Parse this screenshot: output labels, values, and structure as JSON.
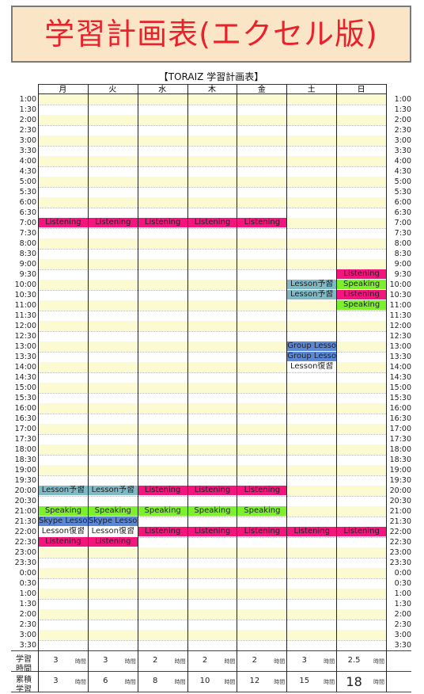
{
  "banner_title": "学習計画表(エクセル版)",
  "sheet_title": "【TORAIZ 学習計画表】",
  "days": [
    "月",
    "火",
    "水",
    "木",
    "金",
    "土",
    "日"
  ],
  "times": [
    "1:00",
    "1:30",
    "2:00",
    "2:30",
    "3:00",
    "3:30",
    "4:00",
    "4:30",
    "5:00",
    "5:30",
    "6:00",
    "6:30",
    "7:00",
    "7:30",
    "8:00",
    "8:30",
    "9:00",
    "9:30",
    "10:00",
    "10:30",
    "11:00",
    "11:30",
    "12:00",
    "12:30",
    "13:00",
    "13:30",
    "14:00",
    "14:30",
    "15:00",
    "15:30",
    "16:00",
    "16:30",
    "17:00",
    "17:30",
    "18:00",
    "18:30",
    "19:00",
    "19:30",
    "20:00",
    "20:30",
    "21:00",
    "21:30",
    "22:00",
    "22:30",
    "23:00",
    "23:30",
    "0:00",
    "0:30",
    "1:00",
    "1:30",
    "2:00",
    "2:30",
    "3:00",
    "3:30"
  ],
  "event_types": {
    "Listening": {
      "bg": "#f4147e"
    },
    "Speaking": {
      "bg": "#7df02e"
    },
    "Lesson予習": {
      "bg": "#7fb9c6"
    },
    "Lesson復習": {
      "bg": "#ffffff"
    },
    "Group Lesson": {
      "bg": "#5b87d7"
    },
    "Skype Lesson": {
      "bg": "#5b87d7"
    }
  },
  "events": [
    {
      "day": 0,
      "slot": 12,
      "label": "Listening"
    },
    {
      "day": 1,
      "slot": 12,
      "label": "Listening"
    },
    {
      "day": 2,
      "slot": 12,
      "label": "Listening"
    },
    {
      "day": 3,
      "slot": 12,
      "label": "Listening"
    },
    {
      "day": 4,
      "slot": 12,
      "label": "Listening"
    },
    {
      "day": 6,
      "slot": 17,
      "label": "Listening"
    },
    {
      "day": 5,
      "slot": 18,
      "label": "Lesson予習"
    },
    {
      "day": 6,
      "slot": 18,
      "label": "Speaking"
    },
    {
      "day": 5,
      "slot": 19,
      "label": "Lesson予習"
    },
    {
      "day": 6,
      "slot": 19,
      "label": "Listening"
    },
    {
      "day": 6,
      "slot": 20,
      "label": "Speaking"
    },
    {
      "day": 5,
      "slot": 24,
      "label": "Group Lesson"
    },
    {
      "day": 5,
      "slot": 25,
      "label": "Group Lesson"
    },
    {
      "day": 5,
      "slot": 26,
      "label": "Lesson復習"
    },
    {
      "day": 0,
      "slot": 38,
      "label": "Lesson予習"
    },
    {
      "day": 1,
      "slot": 38,
      "label": "Lesson予習"
    },
    {
      "day": 2,
      "slot": 38,
      "label": "Listening"
    },
    {
      "day": 3,
      "slot": 38,
      "label": "Listening"
    },
    {
      "day": 4,
      "slot": 38,
      "label": "Listening"
    },
    {
      "day": 0,
      "slot": 40,
      "label": "Speaking"
    },
    {
      "day": 1,
      "slot": 40,
      "label": "Speaking"
    },
    {
      "day": 2,
      "slot": 40,
      "label": "Speaking"
    },
    {
      "day": 3,
      "slot": 40,
      "label": "Speaking"
    },
    {
      "day": 4,
      "slot": 40,
      "label": "Speaking"
    },
    {
      "day": 0,
      "slot": 41,
      "label": "Skype Lesson"
    },
    {
      "day": 1,
      "slot": 41,
      "label": "Skype Lesson"
    },
    {
      "day": 0,
      "slot": 42,
      "label": "Lesson復習"
    },
    {
      "day": 1,
      "slot": 42,
      "label": "Lesson復習"
    },
    {
      "day": 2,
      "slot": 42,
      "label": "Listening"
    },
    {
      "day": 3,
      "slot": 42,
      "label": "Listening"
    },
    {
      "day": 4,
      "slot": 42,
      "label": "Listening"
    },
    {
      "day": 5,
      "slot": 42,
      "label": "Listening"
    },
    {
      "day": 6,
      "slot": 42,
      "label": "Listening"
    },
    {
      "day": 0,
      "slot": 43,
      "label": "Listening"
    },
    {
      "day": 1,
      "slot": 43,
      "label": "Listening"
    }
  ],
  "footer": {
    "study_hours_label": [
      "学習",
      "時間"
    ],
    "cumulative_label": [
      "累積",
      "学習"
    ],
    "unit": "時間",
    "study_hours": [
      "3",
      "3",
      "2",
      "2",
      "2",
      "3",
      "2.5"
    ],
    "cumulative": [
      "3",
      "6",
      "8",
      "10",
      "12",
      "15",
      "18"
    ]
  }
}
